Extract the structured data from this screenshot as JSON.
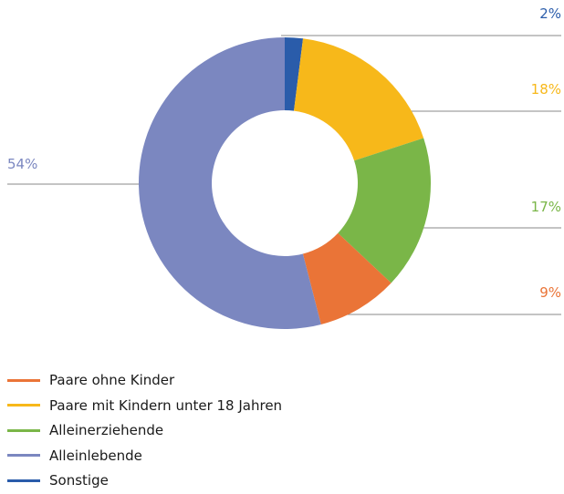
{
  "chart_data": {
    "type": "pie",
    "variant": "donut",
    "slices": [
      {
        "id": "sonstige",
        "name": "Sonstige",
        "value": 2,
        "label": "2%",
        "color": "#2a5caa"
      },
      {
        "id": "paare-mit-kindern",
        "name": "Paare mit Kindern unter 18 Jahren",
        "value": 18,
        "label": "18%",
        "color": "#f7b81a"
      },
      {
        "id": "alleinerziehende",
        "name": "Alleinerziehende",
        "value": 17,
        "label": "17%",
        "color": "#7ab648"
      },
      {
        "id": "paare-ohne-kinder",
        "name": "Paare ohne Kinder",
        "value": 9,
        "label": "9%",
        "color": "#ea7437"
      },
      {
        "id": "alleinlebende",
        "name": "Alleinlebende",
        "value": 54,
        "label": "54%",
        "color": "#7b87c0"
      }
    ],
    "legend": {
      "position": "bottom-left",
      "order": [
        "paare-ohne-kinder",
        "paare-mit-kindern",
        "alleinerziehende",
        "alleinlebende",
        "sonstige"
      ]
    },
    "title": "",
    "xlabel": "",
    "ylabel": ""
  }
}
